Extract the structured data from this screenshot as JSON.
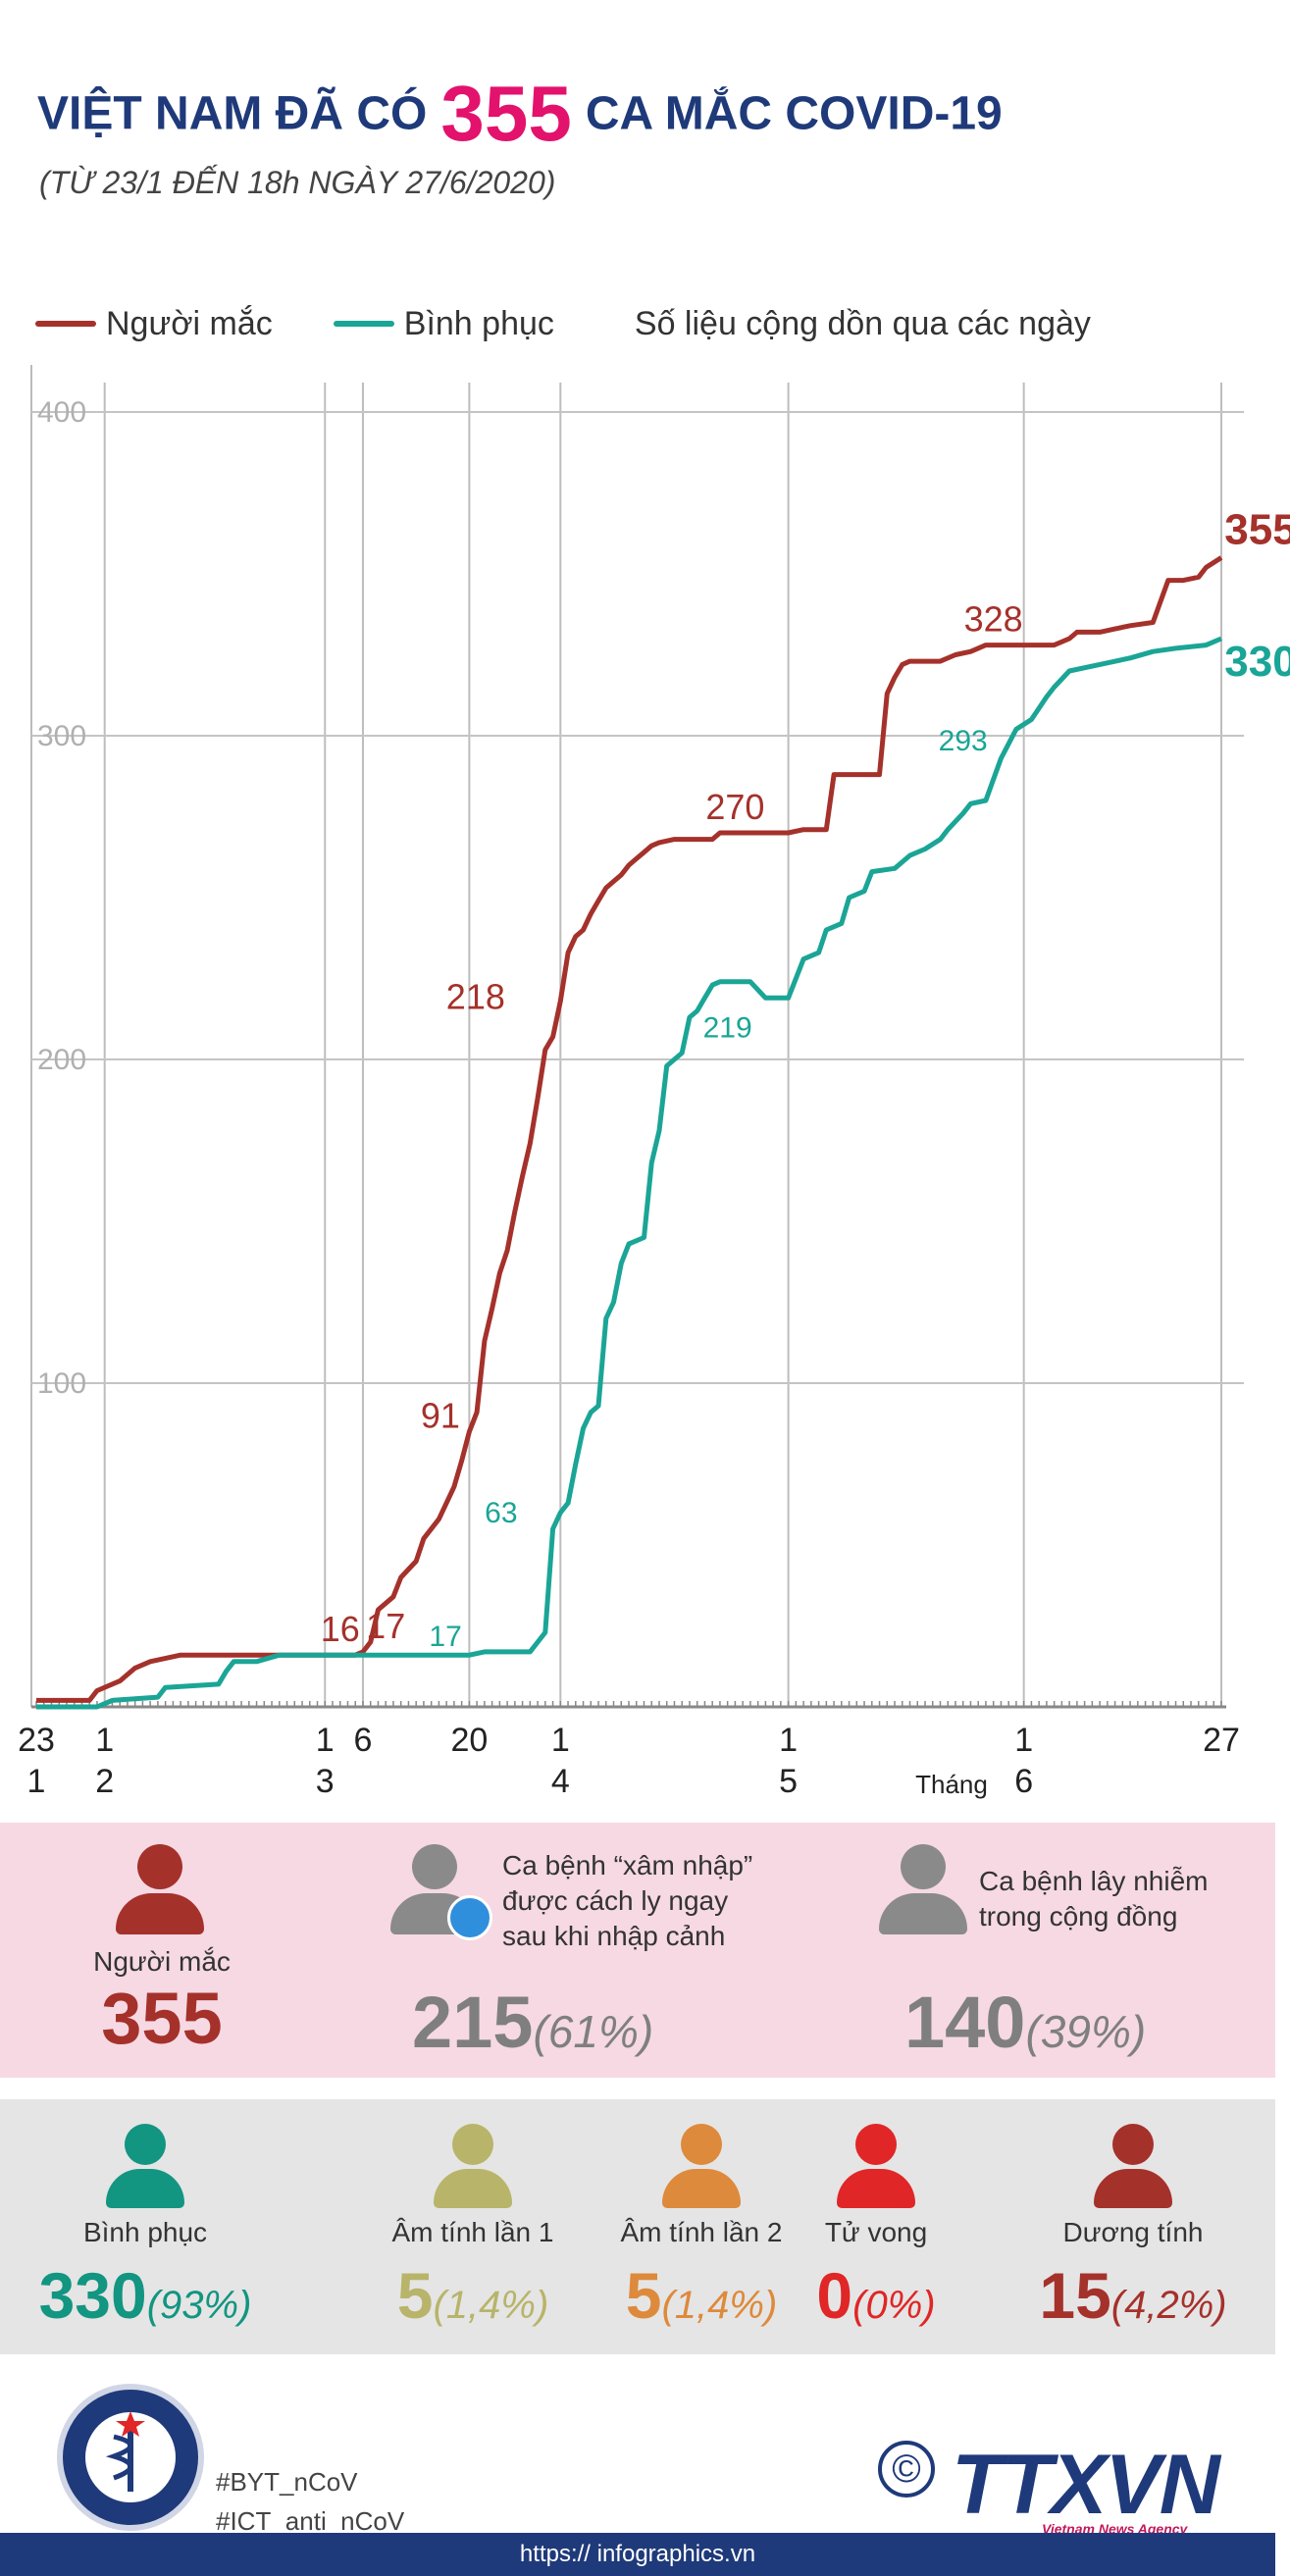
{
  "header": {
    "title_pre": "VIỆT NAM ĐÃ CÓ",
    "title_num": "355",
    "title_post": "CA MẮC COVID-19",
    "subtitle": "(TỪ 23/1 ĐẾN 18h NGÀY 27/6/2020)"
  },
  "legend": {
    "cases": "Người mắc",
    "recovered": "Bình phục",
    "note": "Số liệu cộng dồn qua các ngày"
  },
  "colors": {
    "cases": "#a5312b",
    "recovered": "#1aa596",
    "title": "#1f3a7a",
    "accent": "#e2126d"
  },
  "chart_data": {
    "type": "line",
    "y_ticks": [
      "400",
      "300",
      "200",
      "100"
    ],
    "ylim": [
      0,
      400
    ],
    "x_ticks": [
      {
        "day": 1,
        "top": "23",
        "bottom": "1"
      },
      {
        "day": 10,
        "top": "1",
        "bottom": "2"
      },
      {
        "day": 39,
        "top": "1",
        "bottom": "3"
      },
      {
        "day": 44,
        "top": "6",
        "bottom": ""
      },
      {
        "day": 58,
        "top": "20",
        "bottom": ""
      },
      {
        "day": 70,
        "top": "1",
        "bottom": "4"
      },
      {
        "day": 100,
        "top": "1",
        "bottom": "5"
      },
      {
        "day": 131,
        "top": "1",
        "bottom": "6"
      },
      {
        "day": 157,
        "top": "27",
        "bottom": ""
      }
    ],
    "month_label": "Tháng",
    "series": [
      {
        "name": "Người mắc",
        "points": [
          [
            1,
            2
          ],
          [
            8,
            2
          ],
          [
            9,
            5
          ],
          [
            12,
            8
          ],
          [
            14,
            12
          ],
          [
            16,
            14
          ],
          [
            20,
            16
          ],
          [
            25,
            16
          ],
          [
            35,
            16
          ],
          [
            43,
            16
          ],
          [
            44,
            17
          ],
          [
            45,
            20
          ],
          [
            46,
            30
          ],
          [
            48,
            34
          ],
          [
            49,
            40
          ],
          [
            51,
            45
          ],
          [
            52,
            52
          ],
          [
            54,
            58
          ],
          [
            56,
            68
          ],
          [
            57,
            76
          ],
          [
            58,
            85
          ],
          [
            59,
            91
          ],
          [
            60,
            113
          ],
          [
            61,
            123
          ],
          [
            62,
            134
          ],
          [
            63,
            141
          ],
          [
            64,
            153
          ],
          [
            65,
            164
          ],
          [
            66,
            174
          ],
          [
            67,
            188
          ],
          [
            68,
            203
          ],
          [
            69,
            207
          ],
          [
            70,
            218
          ],
          [
            71,
            233
          ],
          [
            72,
            238
          ],
          [
            73,
            240
          ],
          [
            74,
            245
          ],
          [
            75,
            249
          ],
          [
            76,
            253
          ],
          [
            77,
            255
          ],
          [
            78,
            257
          ],
          [
            79,
            260
          ],
          [
            80,
            262
          ],
          [
            81,
            264
          ],
          [
            82,
            266
          ],
          [
            83,
            267
          ],
          [
            85,
            268
          ],
          [
            90,
            268
          ],
          [
            91,
            270
          ],
          [
            100,
            270
          ],
          [
            102,
            271
          ],
          [
            105,
            271
          ],
          [
            106,
            288
          ],
          [
            110,
            288
          ],
          [
            112,
            288
          ],
          [
            113,
            313
          ],
          [
            114,
            318
          ],
          [
            115,
            322
          ],
          [
            116,
            323
          ],
          [
            118,
            323
          ],
          [
            120,
            323
          ],
          [
            122,
            325
          ],
          [
            124,
            326
          ],
          [
            126,
            328
          ],
          [
            130,
            328
          ],
          [
            135,
            328
          ],
          [
            137,
            330
          ],
          [
            138,
            332
          ],
          [
            141,
            332
          ],
          [
            143,
            333
          ],
          [
            145,
            334
          ],
          [
            148,
            335
          ],
          [
            150,
            348
          ],
          [
            152,
            348
          ],
          [
            154,
            349
          ],
          [
            155,
            352
          ],
          [
            157,
            355
          ]
        ]
      },
      {
        "name": "Bình phục",
        "points": [
          [
            1,
            0
          ],
          [
            9,
            0
          ],
          [
            10,
            1
          ],
          [
            11,
            2
          ],
          [
            17,
            3
          ],
          [
            18,
            6
          ],
          [
            25,
            7
          ],
          [
            26,
            11
          ],
          [
            27,
            14
          ],
          [
            30,
            14
          ],
          [
            33,
            16
          ],
          [
            43,
            16
          ],
          [
            50,
            16
          ],
          [
            56,
            16
          ],
          [
            58,
            16
          ],
          [
            60,
            17
          ],
          [
            66,
            17
          ],
          [
            67,
            20
          ],
          [
            68,
            23
          ],
          [
            69,
            55
          ],
          [
            70,
            60
          ],
          [
            71,
            63
          ],
          [
            72,
            75
          ],
          [
            73,
            86
          ],
          [
            74,
            91
          ],
          [
            75,
            93
          ],
          [
            76,
            120
          ],
          [
            77,
            125
          ],
          [
            78,
            137
          ],
          [
            79,
            143
          ],
          [
            80,
            144
          ],
          [
            81,
            145
          ],
          [
            82,
            168
          ],
          [
            83,
            178
          ],
          [
            84,
            198
          ],
          [
            86,
            202
          ],
          [
            87,
            213
          ],
          [
            88,
            215
          ],
          [
            89,
            219
          ],
          [
            90,
            223
          ],
          [
            91,
            224
          ],
          [
            95,
            224
          ],
          [
            97,
            219
          ],
          [
            100,
            219
          ],
          [
            102,
            231
          ],
          [
            104,
            233
          ],
          [
            105,
            240
          ],
          [
            107,
            242
          ],
          [
            108,
            250
          ],
          [
            110,
            252
          ],
          [
            111,
            258
          ],
          [
            114,
            259
          ],
          [
            116,
            263
          ],
          [
            118,
            265
          ],
          [
            120,
            268
          ],
          [
            121,
            271
          ],
          [
            123,
            276
          ],
          [
            124,
            279
          ],
          [
            126,
            280
          ],
          [
            128,
            293
          ],
          [
            130,
            302
          ],
          [
            132,
            305
          ],
          [
            134,
            312
          ],
          [
            135,
            315
          ],
          [
            137,
            320
          ],
          [
            141,
            322
          ],
          [
            145,
            324
          ],
          [
            148,
            326
          ],
          [
            151,
            327
          ],
          [
            155,
            328
          ],
          [
            157,
            330
          ]
        ]
      }
    ],
    "annotations": [
      {
        "series": 0,
        "day": 41,
        "value": 16,
        "text": "16"
      },
      {
        "series": 0,
        "day": 47,
        "value": 17,
        "text": "17"
      },
      {
        "series": 1,
        "day": 54,
        "value": 17,
        "text": "17"
      },
      {
        "series": 0,
        "day": 56,
        "value": 91,
        "text": "91"
      },
      {
        "series": 1,
        "day": 64,
        "value": 63,
        "text": "63"
      },
      {
        "series": 0,
        "day": 64,
        "value": 218,
        "text": "218"
      },
      {
        "series": 1,
        "day": 92,
        "value": 219,
        "text": "219"
      },
      {
        "series": 0,
        "day": 93,
        "value": 270,
        "text": "270"
      },
      {
        "series": 1,
        "day": 123,
        "value": 293,
        "text": "293"
      },
      {
        "series": 0,
        "day": 127,
        "value": 328,
        "text": "328"
      },
      {
        "series": 0,
        "day": 158,
        "value": 355,
        "text": "355"
      },
      {
        "series": 1,
        "day": 158,
        "value": 330,
        "text": "330"
      }
    ]
  },
  "stats_row1": {
    "cases": {
      "label": "Người mắc",
      "value": "355"
    },
    "imported": {
      "label": "Ca bệnh “xâm nhập” được cách ly ngay sau khi nhập cảnh",
      "line1": "Ca bệnh “xâm nhập”",
      "line2": "được cách ly ngay",
      "line3": "sau khi nhập cảnh",
      "value": "215",
      "pct": "(61%)"
    },
    "community": {
      "line1": "Ca bệnh lây nhiễm",
      "line2": "trong cộng đồng",
      "value": "140",
      "pct": "(39%)"
    }
  },
  "stats_row2": [
    {
      "label": "Bình phục",
      "value": "330",
      "pct": "(93%)",
      "color": "#129581"
    },
    {
      "label": "Âm tính lần 1",
      "value": "5",
      "pct": "(1,4%)",
      "color": "#b8b46a"
    },
    {
      "label": "Âm tính lần 2",
      "value": "5",
      "pct": "(1,4%)",
      "color": "#dd8a3c"
    },
    {
      "label": "Tử vong",
      "value": "0",
      "pct": "(0%)",
      "color": "#e02626"
    },
    {
      "label": "Dương tính",
      "value": "15",
      "pct": "(4,2%)",
      "color": "#a5312b"
    }
  ],
  "footer": {
    "tag1": "#BYT_nCoV",
    "tag2": "#ICT_anti_nCoV",
    "url": "https:// infographics.vn",
    "brand": "TTXVN",
    "brand_sub": "Vietnam News Agency",
    "copyright": "©"
  }
}
